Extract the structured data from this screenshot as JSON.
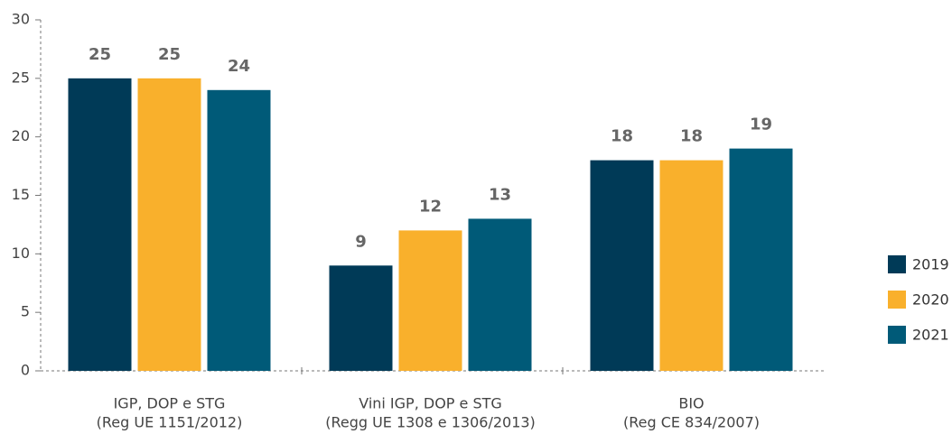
{
  "chart_data": {
    "type": "bar",
    "categories": [
      [
        "IGP, DOP e STG",
        "(Reg UE 1151/2012)"
      ],
      [
        "Vini IGP, DOP e STG",
        "(Regg UE 1308 e 1306/2013)"
      ],
      [
        "BIO",
        "(Reg CE 834/2007)"
      ]
    ],
    "series": [
      {
        "name": "2019",
        "color": "#003a57",
        "values": [
          25,
          9,
          18
        ]
      },
      {
        "name": "2020",
        "color": "#f9b02c",
        "values": [
          25,
          12,
          18
        ]
      },
      {
        "name": "2021",
        "color": "#005a78",
        "values": [
          24,
          13,
          19
        ]
      }
    ],
    "ylim": [
      0,
      30
    ],
    "yticks": [
      0,
      5,
      10,
      15,
      20,
      25,
      30
    ],
    "legend": "right"
  }
}
